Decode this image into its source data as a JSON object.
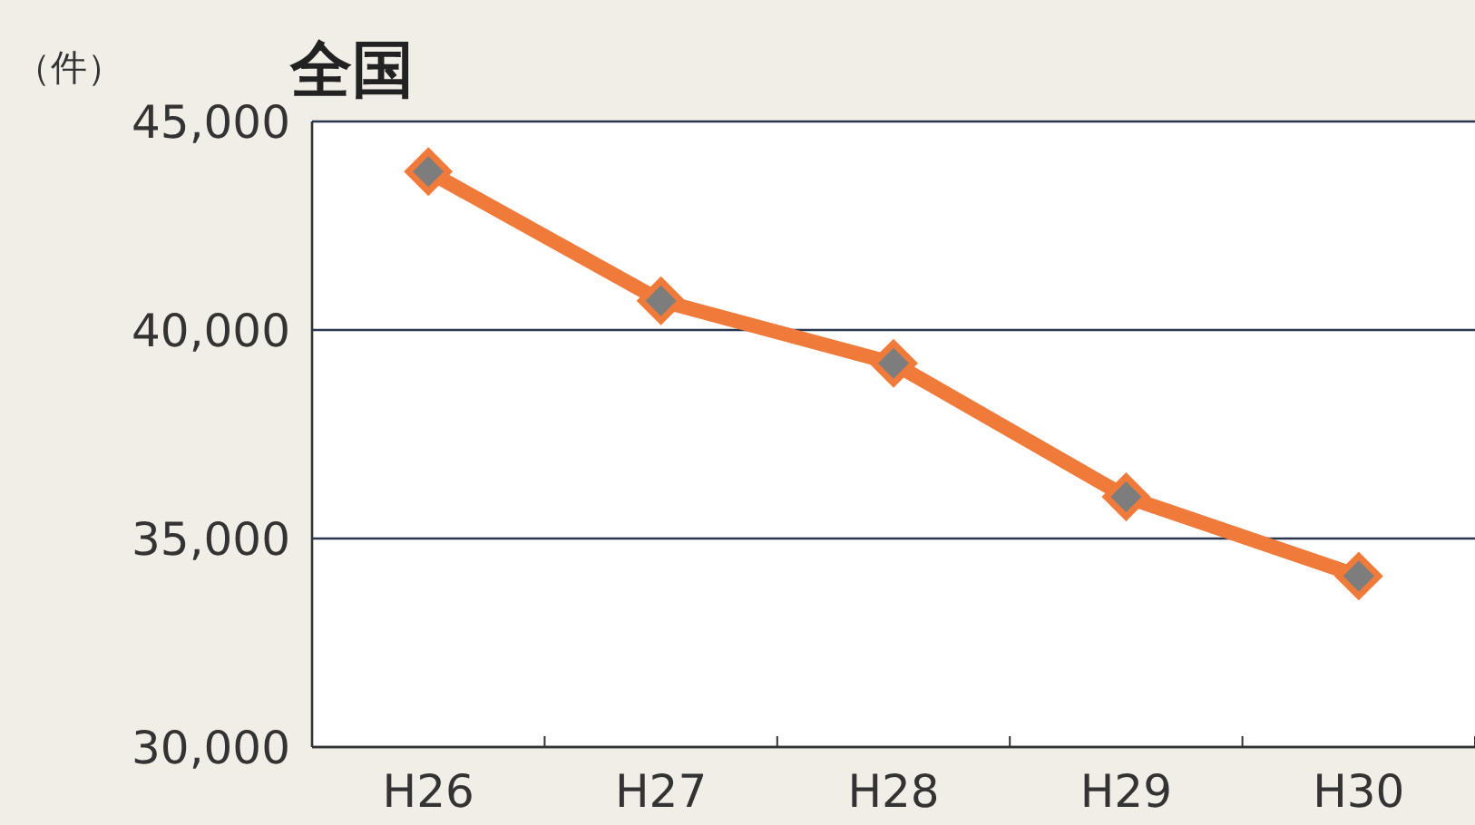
{
  "chart_data": {
    "type": "line",
    "title": "全国",
    "ylabel": "（件）",
    "categories": [
      "H26",
      "H27",
      "H28",
      "H29",
      "H30"
    ],
    "series": [
      {
        "color": "#f07a3a",
        "values": [
          43800,
          40700,
          39200,
          36000,
          34100
        ]
      }
    ],
    "ylim": [
      30000,
      45000
    ],
    "yticks": [
      {
        "value": 30000,
        "label": "30,000"
      },
      {
        "value": 35000,
        "label": "35,000"
      },
      {
        "value": 40000,
        "label": "40,000"
      },
      {
        "value": 45000,
        "label": "45,000"
      }
    ],
    "grid": "y",
    "marker": "diamond",
    "line_style": "solid"
  }
}
